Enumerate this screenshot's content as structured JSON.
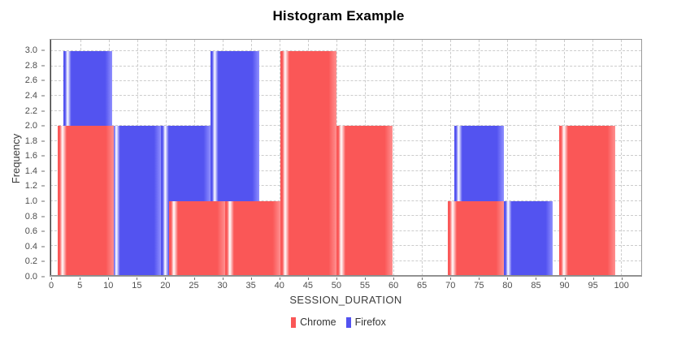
{
  "chart_data": {
    "type": "bar",
    "subtype": "histogram",
    "title": "Histogram Example",
    "xlabel": "SESSION_DURATION",
    "ylabel": "Frequency",
    "xlim": [
      -0.3,
      103.6
    ],
    "ylim": [
      0,
      3.152
    ],
    "grid": {
      "on": true,
      "color": "#cccccc",
      "style": "dashed"
    },
    "x_ticks": [
      {
        "v": 0,
        "label": "0"
      },
      {
        "v": 5,
        "label": "5"
      },
      {
        "v": 10,
        "label": "10"
      },
      {
        "v": 15,
        "label": "15"
      },
      {
        "v": 20,
        "label": "20"
      },
      {
        "v": 25,
        "label": "25"
      },
      {
        "v": 30,
        "label": "30"
      },
      {
        "v": 35,
        "label": "35"
      },
      {
        "v": 40,
        "label": "40"
      },
      {
        "v": 45,
        "label": "45"
      },
      {
        "v": 50,
        "label": "50"
      },
      {
        "v": 55,
        "label": "55"
      },
      {
        "v": 60,
        "label": "60"
      },
      {
        "v": 65,
        "label": "65"
      },
      {
        "v": 70,
        "label": "70"
      },
      {
        "v": 75,
        "label": "75"
      },
      {
        "v": 80,
        "label": "80"
      },
      {
        "v": 85,
        "label": "85"
      },
      {
        "v": 90,
        "label": "90"
      },
      {
        "v": 95,
        "label": "95"
      },
      {
        "v": 100,
        "label": "100"
      }
    ],
    "y_ticks": [
      {
        "v": 0.0,
        "label": "0.0"
      },
      {
        "v": 0.2,
        "label": "0.2"
      },
      {
        "v": 0.4,
        "label": "0.4"
      },
      {
        "v": 0.6,
        "label": "0.6"
      },
      {
        "v": 0.8,
        "label": "0.8"
      },
      {
        "v": 1.0,
        "label": "1.0"
      },
      {
        "v": 1.2,
        "label": "1.2"
      },
      {
        "v": 1.4,
        "label": "1.4"
      },
      {
        "v": 1.6,
        "label": "1.6"
      },
      {
        "v": 1.8,
        "label": "1.8"
      },
      {
        "v": 2.0,
        "label": "2.0"
      },
      {
        "v": 2.2,
        "label": "2.2"
      },
      {
        "v": 2.4,
        "label": "2.4"
      },
      {
        "v": 2.6,
        "label": "2.6"
      },
      {
        "v": 2.8,
        "label": "2.8"
      },
      {
        "v": 3.0,
        "label": "3.0"
      }
    ],
    "series": [
      {
        "name": "Firefox",
        "color": "#5353f0",
        "color_light": "#9090ff",
        "z": 1,
        "bins": [
          {
            "x0": 2.0,
            "x1": 10.6,
            "count": 3
          },
          {
            "x0": 10.6,
            "x1": 19.2,
            "count": 2
          },
          {
            "x0": 19.2,
            "x1": 27.8,
            "count": 2
          },
          {
            "x0": 27.8,
            "x1": 36.4,
            "count": 3
          },
          {
            "x0": 70.8,
            "x1": 79.4,
            "count": 2
          },
          {
            "x0": 79.4,
            "x1": 88.0,
            "count": 1
          }
        ]
      },
      {
        "name": "Chrome",
        "color": "#fa5757",
        "color_light": "#ff9090",
        "z": 2,
        "bins": [
          {
            "x0": 1.0,
            "x1": 10.8,
            "count": 2
          },
          {
            "x0": 20.6,
            "x1": 30.4,
            "count": 1
          },
          {
            "x0": 30.4,
            "x1": 40.2,
            "count": 1
          },
          {
            "x0": 40.2,
            "x1": 50.0,
            "count": 3
          },
          {
            "x0": 50.0,
            "x1": 59.8,
            "count": 2
          },
          {
            "x0": 69.6,
            "x1": 79.4,
            "count": 1
          },
          {
            "x0": 89.2,
            "x1": 99.0,
            "count": 2
          }
        ]
      }
    ],
    "legend": {
      "position": "bottom-center",
      "items": [
        {
          "label": "Chrome",
          "color": "#fa5757"
        },
        {
          "label": "Firefox",
          "color": "#5353f0"
        }
      ]
    },
    "colors": {
      "plot_border": "#9b9b9b",
      "gridline": "#cccccc",
      "tick_label": "#4e4e4e",
      "axis_title": "#3c3c3c",
      "title": "#000000"
    }
  }
}
